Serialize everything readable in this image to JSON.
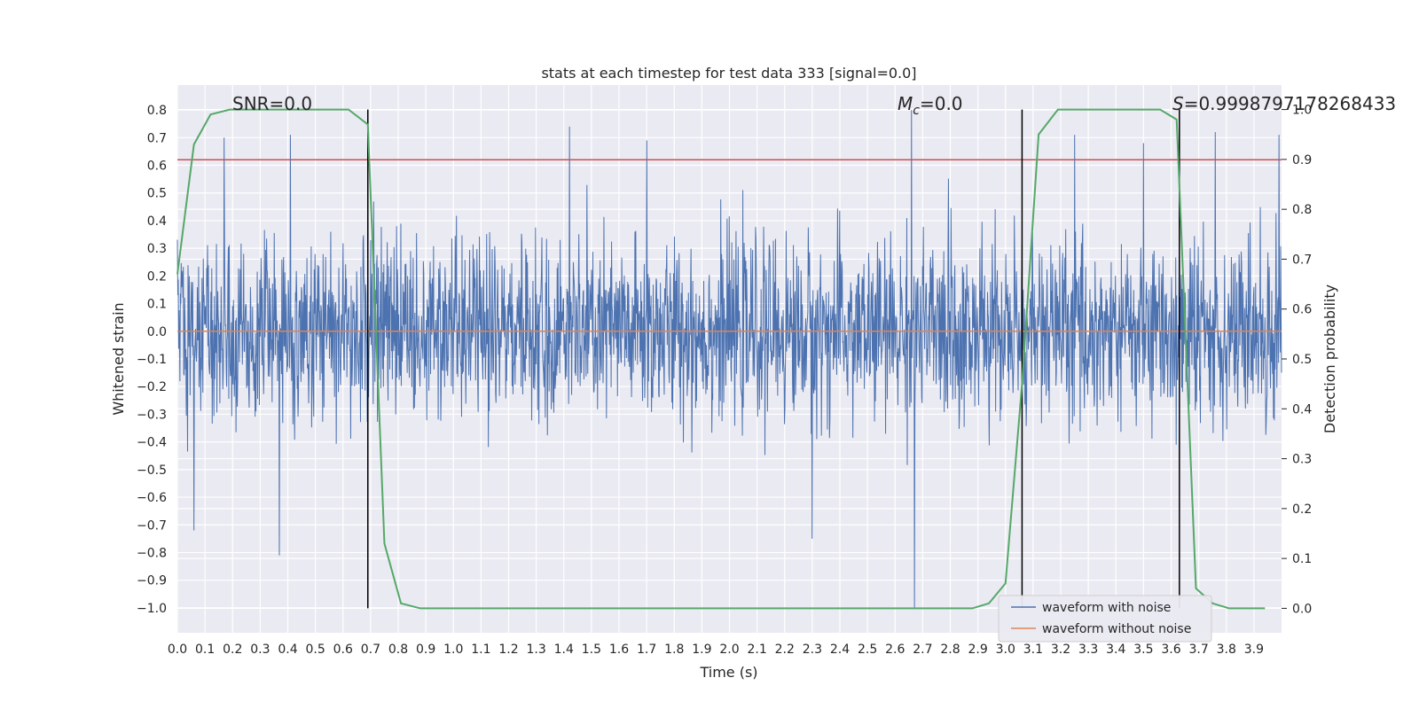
{
  "chart_data": {
    "type": "line",
    "title": "stats at each timestep for test data 333 [signal=0.0]",
    "xlabel": "Time (s)",
    "ylabel": "Whitened strain",
    "y2label": "Detection probability",
    "xlim": [
      0.0,
      4.0
    ],
    "ylim": [
      -1.09,
      0.89
    ],
    "y2lim": [
      -0.049,
      1.049
    ],
    "x_ticks": [
      "0.0",
      "0.1",
      "0.2",
      "0.3",
      "0.4",
      "0.5",
      "0.6",
      "0.7",
      "0.8",
      "0.9",
      "1.0",
      "1.1",
      "1.2",
      "1.3",
      "1.4",
      "1.5",
      "1.6",
      "1.7",
      "1.8",
      "1.9",
      "2.0",
      "2.1",
      "2.2",
      "2.3",
      "2.4",
      "2.5",
      "2.6",
      "2.7",
      "2.8",
      "2.9",
      "3.0",
      "3.1",
      "3.2",
      "3.3",
      "3.4",
      "3.5",
      "3.6",
      "3.7",
      "3.8",
      "3.9"
    ],
    "y_ticks": [
      "0.8",
      "0.7",
      "0.6",
      "0.5",
      "0.4",
      "0.3",
      "0.2",
      "0.1",
      "0.0",
      "−0.1",
      "−0.2",
      "−0.3",
      "−0.4",
      "−0.5",
      "−0.6",
      "−0.7",
      "−0.8",
      "−0.9",
      "−1.0"
    ],
    "y2_ticks": [
      "1.0",
      "0.9",
      "0.8",
      "0.7",
      "0.6",
      "0.5",
      "0.4",
      "0.3",
      "0.2",
      "0.1",
      "0.0"
    ],
    "grid": true,
    "legend_position": "lower-right",
    "series": [
      {
        "name": "waveform with noise",
        "color": "#4c72b0",
        "description_kind": "dense noise, roughly within ±0.5 with spikes",
        "spikes": [
          {
            "x": 0.06,
            "y": -0.72
          },
          {
            "x": 0.17,
            "y": -0.65
          },
          {
            "x": 0.17,
            "y": 0.7
          },
          {
            "x": 0.37,
            "y": -0.81
          },
          {
            "x": 0.41,
            "y": 0.71
          },
          {
            "x": 1.42,
            "y": 0.74
          },
          {
            "x": 1.7,
            "y": 0.69
          },
          {
            "x": 2.3,
            "y": -0.75
          },
          {
            "x": 2.66,
            "y": 0.8
          },
          {
            "x": 2.67,
            "y": -1.0
          },
          {
            "x": 3.25,
            "y": 0.71
          },
          {
            "x": 3.5,
            "y": 0.68
          },
          {
            "x": 3.76,
            "y": 0.72
          },
          {
            "x": 3.99,
            "y": 0.71
          }
        ]
      },
      {
        "name": "waveform without noise",
        "color": "#dd8452",
        "x": [
          0.0,
          4.0
        ],
        "y": [
          0.0,
          0.0
        ]
      },
      {
        "name": "detection probability",
        "color": "#55a868",
        "axis": "right",
        "x": [
          0.0,
          0.06,
          0.12,
          0.19,
          0.25,
          0.31,
          0.38,
          0.44,
          0.5,
          0.56,
          0.62,
          0.69,
          0.75,
          0.81,
          0.88,
          0.94,
          1.0,
          1.5,
          2.0,
          2.5,
          2.81,
          2.88,
          2.94,
          3.0,
          3.06,
          3.12,
          3.19,
          3.25,
          3.31,
          3.38,
          3.44,
          3.5,
          3.56,
          3.62,
          3.69,
          3.75,
          3.81,
          3.88,
          3.94
        ],
        "y": [
          0.67,
          0.93,
          0.99,
          1.0,
          1.0,
          1.0,
          1.0,
          1.0,
          1.0,
          1.0,
          1.0,
          0.97,
          0.13,
          0.01,
          0.0,
          0.0,
          0.0,
          0.0,
          0.0,
          0.0,
          0.0,
          0.0,
          0.01,
          0.05,
          0.45,
          0.95,
          1.0,
          1.0,
          1.0,
          1.0,
          1.0,
          1.0,
          1.0,
          0.98,
          0.04,
          0.01,
          0.0,
          0.0,
          0.0
        ]
      }
    ],
    "hline": {
      "y": 0.62,
      "color": "#c44e52"
    },
    "vlines": [
      0.69,
      3.06,
      3.63
    ],
    "vline_color": "#000000",
    "annotations": [
      {
        "text": "SNR=0.0",
        "x": 0.35
      },
      {
        "text_main": "M",
        "text_sub": "c",
        "text_rest": "=0.0",
        "x": 2.72
      },
      {
        "text_main": "S",
        "text_rest": "=0.9998797178268433",
        "x": 3.62
      }
    ],
    "legend": [
      "waveform with noise",
      "waveform without noise"
    ]
  }
}
